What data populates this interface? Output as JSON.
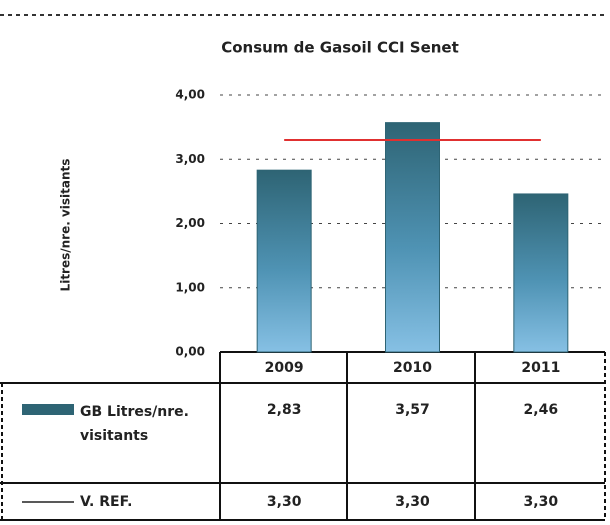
{
  "chart_data": {
    "type": "bar",
    "title": "Consum de Gasoil CCI Senet",
    "y_label": "Litres/nre. visitants",
    "categories": [
      "2009",
      "2010",
      "2011"
    ],
    "series": [
      {
        "name": "GB Litres/nre. visitants",
        "type": "bar",
        "color": "#2e6474",
        "values": [
          2.83,
          3.57,
          2.46
        ],
        "value_labels": [
          "2,83",
          "3,57",
          "2,46"
        ]
      },
      {
        "name": "V. REF.",
        "type": "line",
        "color": "#e03030",
        "values": [
          3.3,
          3.3,
          3.3
        ],
        "value_labels": [
          "3,30",
          "3,30",
          "3,30"
        ]
      }
    ],
    "ylim": [
      0,
      4
    ],
    "yticks": [
      {
        "value": 0,
        "label": "0,00"
      },
      {
        "value": 1,
        "label": "1,00"
      },
      {
        "value": 2,
        "label": "2,00"
      },
      {
        "value": 3,
        "label": "3,00"
      },
      {
        "value": 4,
        "label": "4,00"
      }
    ],
    "grid": true
  }
}
